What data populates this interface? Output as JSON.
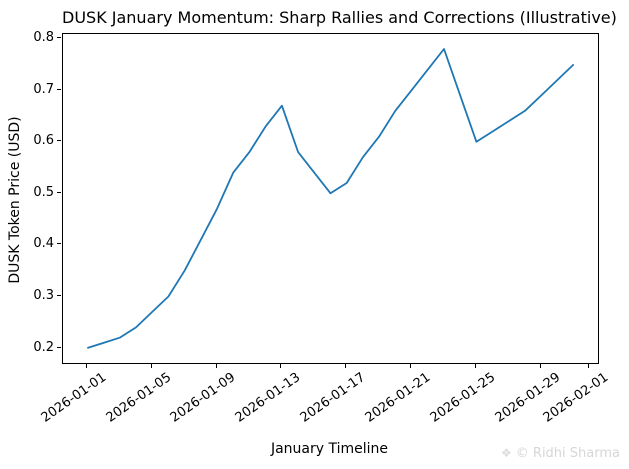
{
  "watermark": {
    "icon": "❖",
    "text": "© Ridhi Sharma"
  },
  "chart_data": {
    "type": "line",
    "title": "DUSK January Momentum: Sharp Rallies and Corrections (Illustrative)",
    "xlabel": "January Timeline",
    "ylabel": "DUSK Token Price (USD)",
    "line_color": "#1f77b4",
    "grid": false,
    "legend": "none",
    "x": [
      "2026-01-01",
      "2026-01-02",
      "2026-01-03",
      "2026-01-04",
      "2026-01-05",
      "2026-01-06",
      "2026-01-07",
      "2026-01-08",
      "2026-01-09",
      "2026-01-10",
      "2026-01-11",
      "2026-01-12",
      "2026-01-13",
      "2026-01-14",
      "2026-01-15",
      "2026-01-16",
      "2026-01-17",
      "2026-01-18",
      "2026-01-19",
      "2026-01-20",
      "2026-01-21",
      "2026-01-22",
      "2026-01-23",
      "2026-01-24",
      "2026-01-25",
      "2026-01-26",
      "2026-01-27",
      "2026-01-28",
      "2026-01-29",
      "2026-01-30",
      "2026-01-31"
    ],
    "y": [
      0.2,
      0.21,
      0.22,
      0.24,
      0.27,
      0.3,
      0.35,
      0.41,
      0.47,
      0.54,
      0.58,
      0.63,
      0.67,
      0.58,
      0.54,
      0.5,
      0.52,
      0.57,
      0.61,
      0.66,
      0.7,
      0.74,
      0.78,
      0.69,
      0.6,
      0.62,
      0.64,
      0.66,
      0.69,
      0.72,
      0.75
    ],
    "yticks": [
      0.2,
      0.3,
      0.4,
      0.5,
      0.6,
      0.7,
      0.8
    ],
    "ytick_labels": [
      "0.2",
      "0.3",
      "0.4",
      "0.5",
      "0.6",
      "0.7",
      "0.8"
    ],
    "xticks": {
      "labels": [
        "2026-01-01",
        "2026-01-05",
        "2026-01-09",
        "2026-01-13",
        "2026-01-17",
        "2026-01-21",
        "2026-01-25",
        "2026-01-29",
        "2026-02-01"
      ],
      "day_offsets": [
        0,
        4,
        8,
        12,
        16,
        20,
        24,
        28,
        31
      ]
    },
    "xlim_days": [
      -1.5,
      31.5
    ],
    "ylim": [
      0.171,
      0.809
    ]
  }
}
